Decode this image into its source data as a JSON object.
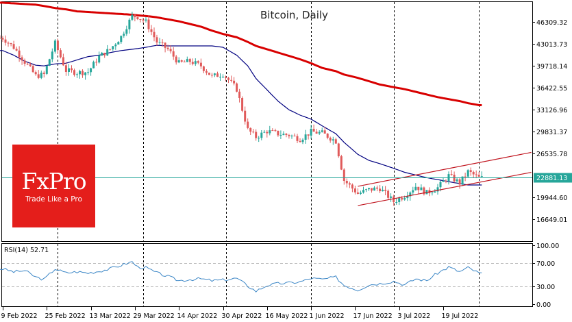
{
  "chart_data": [
    {
      "type": "candlestick",
      "title": "Bitcoin, Daily",
      "symbol": "Bitcoin",
      "timeframe": "Daily",
      "xlabel": "",
      "ylabel": "",
      "x_tick_labels": [
        "9 Feb 2022",
        "25 Feb 2022",
        "13 Mar 2022",
        "29 Mar 2022",
        "14 Apr 2022",
        "30 Apr 2022",
        "16 May 2022",
        "1 Jun 2022",
        "17 Jun 2022",
        "3 Jul 2022",
        "19 Jul 2022"
      ],
      "y_tick_labels": [
        "46309.32",
        "43013.73",
        "39718.14",
        "36422.55",
        "33126.96",
        "29831.37",
        "26535.78",
        "19944.60",
        "16649.01"
      ],
      "ylim": [
        15300,
        49500
      ],
      "current_price": 22881.13,
      "current_price_color": "#26a69a",
      "bull_color": "#26a69a",
      "bear_color": "#e05a5a",
      "grid": false,
      "month_separators": [
        "1 Mar 2022",
        "1 Apr 2022",
        "1 May 2022",
        "1 Jun 2022",
        "1 Jul 2022",
        "1 Aug 2022"
      ],
      "series": [
        {
          "name": "Price (close, approx.)",
          "x": [
            "2022-02-09",
            "2022-02-13",
            "2022-02-17",
            "2022-02-21",
            "2022-02-24",
            "2022-02-28",
            "2022-03-04",
            "2022-03-08",
            "2022-03-12",
            "2022-03-16",
            "2022-03-20",
            "2022-03-24",
            "2022-03-28",
            "2022-03-30",
            "2022-04-02",
            "2022-04-06",
            "2022-04-10",
            "2022-04-14",
            "2022-04-18",
            "2022-04-22",
            "2022-04-26",
            "2022-04-30",
            "2022-05-05",
            "2022-05-09",
            "2022-05-12",
            "2022-05-16",
            "2022-05-20",
            "2022-05-24",
            "2022-05-28",
            "2022-06-01",
            "2022-06-05",
            "2022-06-10",
            "2022-06-13",
            "2022-06-18",
            "2022-06-22",
            "2022-06-26",
            "2022-07-01",
            "2022-07-05",
            "2022-07-09",
            "2022-07-13",
            "2022-07-17",
            "2022-07-21",
            "2022-07-25",
            "2022-07-28",
            "2022-08-01"
          ],
          "values": [
            43900,
            42500,
            40300,
            38200,
            38400,
            43100,
            39000,
            38700,
            38800,
            41100,
            42200,
            44100,
            47200,
            47100,
            46300,
            43300,
            42200,
            40100,
            40400,
            39700,
            38100,
            38500,
            36200,
            30100,
            29000,
            29900,
            29500,
            29300,
            28700,
            29800,
            29600,
            28400,
            22500,
            20500,
            21100,
            21300,
            19300,
            20200,
            21600,
            20600,
            21400,
            23200,
            22100,
            23800,
            22881
          ]
        },
        {
          "name": "MA 50 (navy)",
          "color": "#000080",
          "values": [
            42000,
            41300,
            40400,
            39800,
            39700,
            40000,
            40100,
            40600,
            41100,
            41300,
            41700,
            42000,
            42200,
            42300,
            42500,
            42800,
            42700,
            42700,
            42700,
            42700,
            42700,
            42500,
            41300,
            39700,
            37800,
            36100,
            34400,
            33100,
            32300,
            31700,
            30700,
            29500,
            28200,
            26400,
            25500,
            25000,
            24300,
            23700,
            23300,
            22900,
            22600,
            22300,
            22000,
            21800,
            21800
          ]
        },
        {
          "name": "MA 200 (red)",
          "color": "#d80000",
          "values": [
            49200,
            49100,
            49000,
            48900,
            48700,
            48400,
            48200,
            47900,
            47800,
            47700,
            47600,
            47500,
            47400,
            47300,
            47200,
            47000,
            46700,
            46400,
            46000,
            45600,
            45000,
            44500,
            44000,
            43300,
            42700,
            42200,
            41700,
            41200,
            40700,
            40100,
            39400,
            38900,
            38400,
            37900,
            37400,
            36900,
            36500,
            36200,
            35800,
            35400,
            35000,
            34700,
            34400,
            34100,
            33800
          ]
        },
        {
          "name": "Ascending channel",
          "color": "#c0141e",
          "upper_line": [
            {
              "x": "2022-06-18",
              "y": 21600
            },
            {
              "x": "2022-08-20",
              "y": 26700
            }
          ],
          "lower_line": [
            {
              "x": "2022-06-18",
              "y": 18700
            },
            {
              "x": "2022-08-20",
              "y": 23700
            }
          ]
        }
      ]
    },
    {
      "type": "line",
      "title": "RSI(14) 52.71",
      "indicator": "RSI",
      "period": 14,
      "current_value": 52.71,
      "ylim": [
        0,
        100
      ],
      "y_tick_labels": [
        "100.00",
        "70.00",
        "30.00",
        "0.00"
      ],
      "levels": [
        70,
        30
      ],
      "color": "#3b86c6",
      "x": [
        "2022-02-09",
        "2022-02-13",
        "2022-02-17",
        "2022-02-21",
        "2022-02-24",
        "2022-02-28",
        "2022-03-04",
        "2022-03-08",
        "2022-03-12",
        "2022-03-16",
        "2022-03-20",
        "2022-03-24",
        "2022-03-28",
        "2022-03-30",
        "2022-04-02",
        "2022-04-06",
        "2022-04-10",
        "2022-04-14",
        "2022-04-18",
        "2022-04-22",
        "2022-04-26",
        "2022-04-30",
        "2022-05-05",
        "2022-05-09",
        "2022-05-12",
        "2022-05-16",
        "2022-05-20",
        "2022-05-24",
        "2022-05-28",
        "2022-06-01",
        "2022-06-05",
        "2022-06-10",
        "2022-06-13",
        "2022-06-18",
        "2022-06-22",
        "2022-06-26",
        "2022-07-01",
        "2022-07-05",
        "2022-07-09",
        "2022-07-13",
        "2022-07-17",
        "2022-07-21",
        "2022-07-25",
        "2022-07-28",
        "2022-08-01"
      ],
      "values": [
        60,
        55,
        57,
        46,
        42,
        60,
        53,
        55,
        53,
        56,
        60,
        66,
        72,
        63,
        62,
        53,
        47,
        40,
        42,
        43,
        40,
        41,
        44,
        31,
        22,
        32,
        35,
        36,
        38,
        44,
        42,
        46,
        32,
        24,
        33,
        35,
        39,
        33,
        43,
        40,
        53,
        63,
        55,
        62,
        52.71
      ]
    }
  ],
  "watermark": {
    "brand": "FxPro",
    "tagline": "Trade Like a Pro",
    "color": "#e41e1b"
  }
}
